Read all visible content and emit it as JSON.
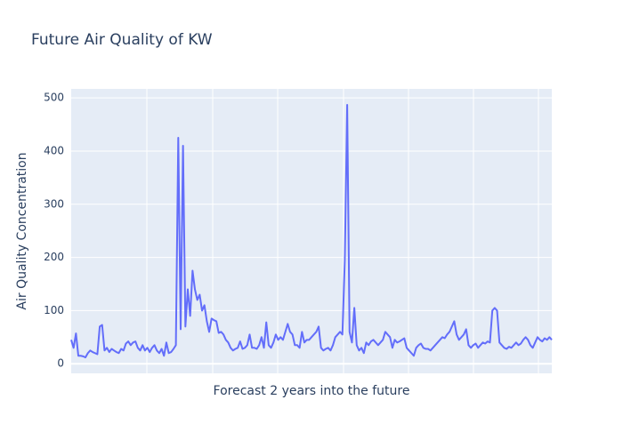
{
  "chart_data": {
    "type": "line",
    "title": "Future Air Quality of KW",
    "x_label": "Forecast 2 years into the future",
    "y_label": "Air Quality Concentration",
    "series": [
      {
        "color": "#636efa",
        "values": [
          45,
          30,
          57,
          15,
          15,
          14,
          12,
          20,
          25,
          22,
          20,
          18,
          70,
          73,
          25,
          30,
          22,
          28,
          25,
          22,
          20,
          28,
          25,
          38,
          42,
          35,
          40,
          42,
          30,
          25,
          35,
          25,
          30,
          22,
          30,
          35,
          25,
          20,
          28,
          15,
          40,
          20,
          22,
          28,
          35,
          425,
          65,
          410,
          70,
          140,
          90,
          175,
          140,
          120,
          130,
          100,
          110,
          80,
          60,
          85,
          82,
          80,
          58,
          60,
          55,
          45,
          40,
          30,
          25,
          28,
          30,
          42,
          28,
          30,
          35,
          55,
          30,
          30,
          28,
          35,
          50,
          30,
          78,
          35,
          30,
          40,
          55,
          45,
          50,
          45,
          60,
          75,
          60,
          55,
          35,
          35,
          30,
          60,
          40,
          45,
          45,
          50,
          55,
          60,
          70,
          30,
          25,
          28,
          30,
          25,
          35,
          50,
          55,
          60,
          55,
          195,
          487,
          60,
          40,
          105,
          35,
          25,
          30,
          20,
          40,
          35,
          42,
          45,
          40,
          35,
          40,
          45,
          60,
          55,
          50,
          30,
          45,
          40,
          42,
          45,
          48,
          30,
          25,
          20,
          15,
          30,
          35,
          38,
          30,
          28,
          28,
          25,
          30,
          35,
          40,
          45,
          50,
          48,
          55,
          60,
          70,
          80,
          55,
          45,
          50,
          55,
          65,
          35,
          30,
          35,
          38,
          30,
          35,
          40,
          38,
          42,
          40,
          100,
          105,
          100,
          40,
          35,
          30,
          28,
          32,
          30,
          35,
          40,
          35,
          38,
          45,
          50,
          45,
          35,
          30,
          40,
          50,
          45,
          42,
          48,
          45,
          50,
          45
        ]
      }
    ],
    "ylim": [
      -18,
      517
    ],
    "yticks": [
      0,
      100,
      200,
      300,
      400,
      500
    ],
    "grid": true
  }
}
